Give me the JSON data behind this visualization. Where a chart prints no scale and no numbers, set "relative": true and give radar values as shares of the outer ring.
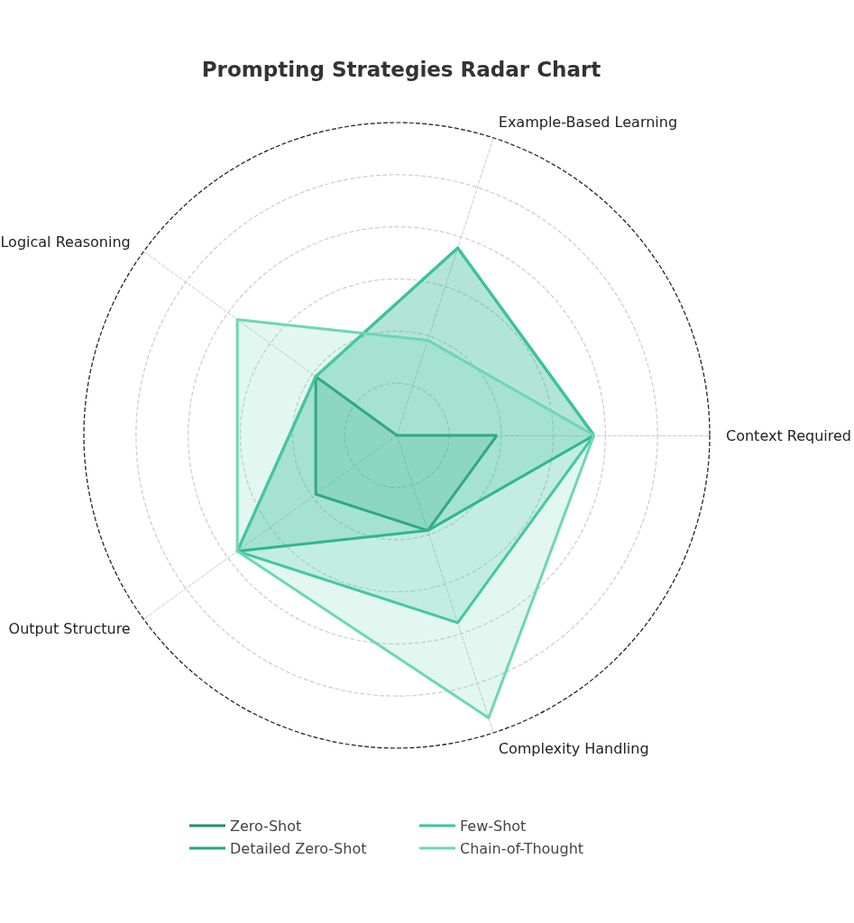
{
  "chart_data": {
    "type": "radar",
    "title": "Prompting Strategies Radar Chart",
    "categories": [
      "Context Required",
      "Complexity Handling",
      "Output Structure",
      "Logical Reasoning",
      "Example-Based Learning"
    ],
    "relative": true,
    "grid": true,
    "legend": "bottom",
    "marker": "none",
    "series": [
      {
        "name": "Zero-Shot",
        "color": "#1a9070",
        "values": [
          0.32,
          0.32,
          0.32,
          0.32,
          0
        ]
      },
      {
        "name": "Detailed Zero-Shot",
        "color": "#1aac7b",
        "values": [
          0.63,
          0.32,
          0.63,
          0.32,
          0.63
        ]
      },
      {
        "name": "Few-Shot",
        "color": "#3cc49a",
        "values": [
          0.63,
          0.63,
          0.63,
          0.32,
          0.63
        ]
      },
      {
        "name": "Chain-of-Thought",
        "color": "#6fd6b5",
        "values": [
          0.63,
          0.95,
          0.63,
          0.63,
          0.32
        ]
      }
    ]
  }
}
